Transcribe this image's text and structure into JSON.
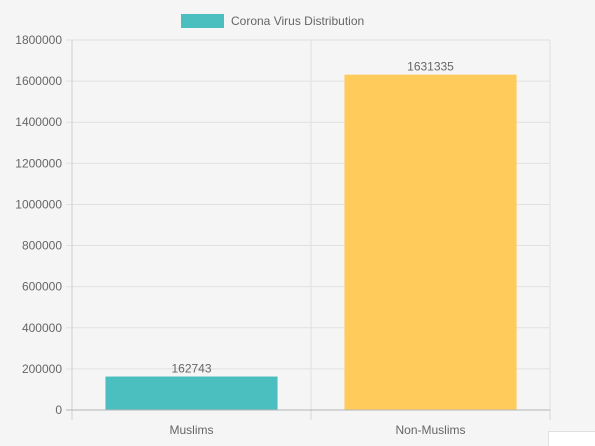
{
  "chart_data": {
    "type": "bar",
    "categories": [
      "Muslims",
      "Non-Muslims"
    ],
    "series": [
      {
        "name": "Corona Virus Distribution",
        "values": [
          162743,
          1631335
        ],
        "colors": [
          "#4bbfc0",
          "#ffcb5a"
        ]
      }
    ],
    "value_labels": [
      "162743",
      "1631335"
    ],
    "ylim": [
      0,
      1800000
    ],
    "yticks": [
      "0",
      "200000",
      "400000",
      "600000",
      "800000",
      "1000000",
      "1200000",
      "1400000",
      "1600000",
      "1800000"
    ],
    "grid": true,
    "legend": "top-center",
    "legend_color": "#4bbfc0"
  }
}
